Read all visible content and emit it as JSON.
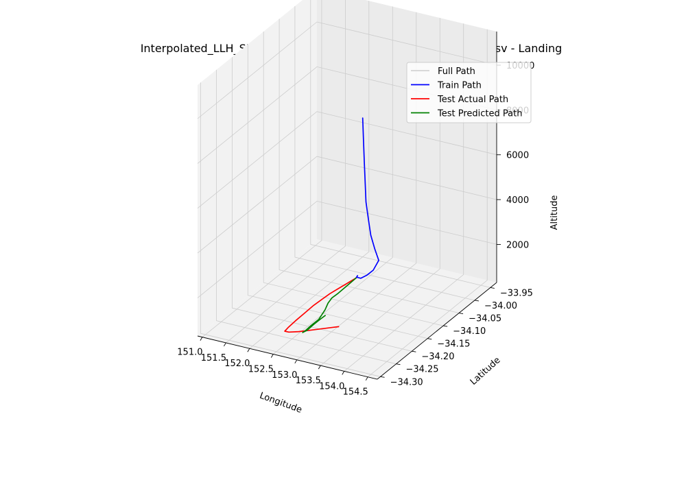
{
  "chart_data": {
    "type": "line",
    "projection": "3d",
    "title": "Interpolated_LLH_SH Flight LA801 Auckland to Sydney_landing.csv - Landing",
    "xlabel": "Longitude",
    "ylabel": "Latitude",
    "zlabel": "Altitude",
    "x_ticks": [
      "151.0",
      "151.5",
      "152.0",
      "152.5",
      "153.0",
      "153.5",
      "154.0",
      "154.5"
    ],
    "y_ticks": [
      "−34.30",
      "−34.25",
      "−34.20",
      "−34.15",
      "−34.10",
      "−34.05",
      "−34.00",
      "−33.95"
    ],
    "z_ticks": [
      "2000",
      "4000",
      "6000",
      "8000",
      "10000"
    ],
    "xlim": [
      150.9,
      154.7
    ],
    "ylim": [
      -34.31,
      -33.93
    ],
    "zlim": [
      300,
      11500
    ],
    "grid": true,
    "legend_position": "upper-right",
    "series": [
      {
        "name": "Full Path",
        "color": "#d3d3d3",
        "points": []
      },
      {
        "name": "Train Path",
        "color": "#0000ff",
        "points": [
          [
            152.0,
            -33.95,
            6500
          ],
          [
            152.25,
            -33.985,
            6000
          ],
          [
            152.5,
            -34.02,
            5550
          ],
          [
            152.75,
            -34.055,
            5200
          ],
          [
            153.0,
            -34.09,
            4850
          ],
          [
            153.25,
            -34.12,
            4550
          ],
          [
            153.5,
            -34.15,
            4300
          ],
          [
            153.75,
            -34.175,
            4100
          ],
          [
            154.0,
            -34.2,
            4000
          ],
          [
            153.95,
            -34.21,
            3650
          ],
          [
            153.88,
            -34.22,
            3500
          ],
          [
            153.82,
            -34.23,
            3450
          ],
          [
            153.8,
            -34.24,
            3600
          ],
          [
            153.85,
            -34.245,
            3750
          ],
          [
            153.85,
            -34.25,
            3700
          ]
        ]
      },
      {
        "name": "Test Actual Path",
        "color": "#ff0000",
        "points": [
          [
            153.85,
            -34.25,
            3700
          ],
          [
            153.7,
            -34.255,
            3450
          ],
          [
            153.55,
            -34.26,
            3200
          ],
          [
            153.4,
            -34.265,
            2950
          ],
          [
            153.25,
            -34.268,
            2650
          ],
          [
            153.1,
            -34.272,
            2350
          ],
          [
            152.95,
            -34.278,
            2000
          ],
          [
            152.8,
            -34.284,
            1650
          ],
          [
            152.68,
            -34.29,
            1350
          ],
          [
            152.63,
            -34.293,
            1200
          ],
          [
            152.67,
            -34.286,
            1100
          ],
          [
            152.8,
            -34.274,
            1050
          ],
          [
            152.95,
            -34.262,
            1050
          ],
          [
            153.1,
            -34.25,
            1050
          ],
          [
            153.25,
            -34.238,
            1050
          ],
          [
            153.35,
            -34.23,
            1050
          ]
        ]
      },
      {
        "name": "Test Predicted Path",
        "color": "#008000",
        "points": [
          [
            153.85,
            -34.25,
            3700
          ],
          [
            153.7,
            -34.258,
            3350
          ],
          [
            153.55,
            -34.262,
            3000
          ],
          [
            153.45,
            -34.266,
            2800
          ],
          [
            153.38,
            -34.268,
            2550
          ],
          [
            153.33,
            -34.27,
            2250
          ],
          [
            153.27,
            -34.272,
            2000
          ],
          [
            153.22,
            -34.274,
            1800
          ],
          [
            153.15,
            -34.276,
            1650
          ],
          [
            153.08,
            -34.278,
            1500
          ],
          [
            153.02,
            -34.28,
            1350
          ],
          [
            152.98,
            -34.282,
            1250
          ],
          [
            152.95,
            -34.284,
            1200
          ],
          [
            153.0,
            -34.278,
            1250
          ],
          [
            153.08,
            -34.268,
            1450
          ],
          [
            153.15,
            -34.258,
            1600
          ],
          [
            153.2,
            -34.25,
            1700
          ]
        ]
      }
    ]
  }
}
